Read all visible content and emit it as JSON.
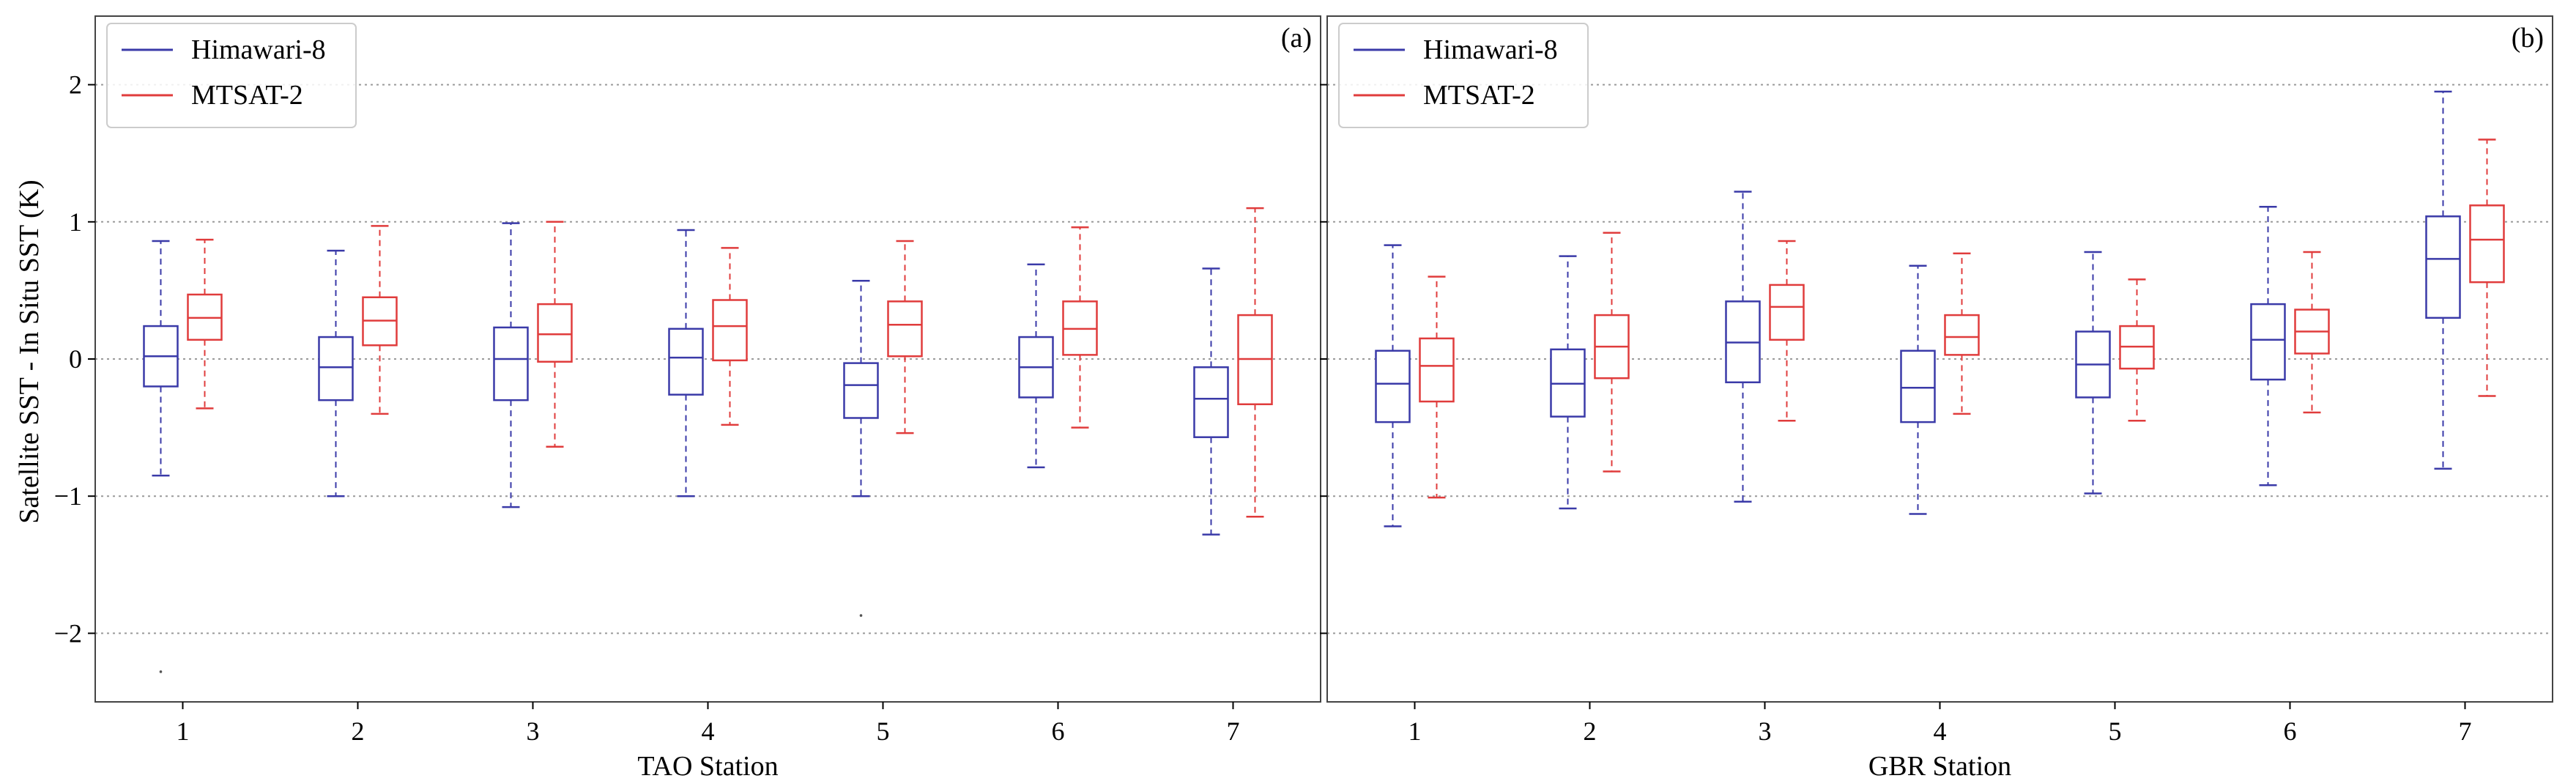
{
  "chart_data": [
    {
      "type": "boxplot",
      "panel_label": "(a)",
      "xlabel": "TAO Station",
      "ylabel": "Satellite SST - In Situ SST (K)",
      "ylim": [
        -2.5,
        2.5
      ],
      "yticks": [
        -2,
        -1,
        0,
        1,
        2
      ],
      "ytick_labels": [
        "−2",
        "−1",
        "0",
        "1",
        "2"
      ],
      "grid": "horizontal dotted",
      "legend_position": "top-left",
      "categories": [
        "1",
        "2",
        "3",
        "4",
        "5",
        "6",
        "7"
      ],
      "series": [
        {
          "name": "Himawari-8",
          "color": "#3a3aa8",
          "boxes": [
            {
              "whislo": -0.85,
              "q1": -0.2,
              "med": 0.02,
              "q3": 0.24,
              "whishi": 0.86
            },
            {
              "whislo": -1.0,
              "q1": -0.3,
              "med": -0.06,
              "q3": 0.16,
              "whishi": 0.79
            },
            {
              "whislo": -1.08,
              "q1": -0.3,
              "med": 0.0,
              "q3": 0.23,
              "whishi": 0.99
            },
            {
              "whislo": -1.0,
              "q1": -0.26,
              "med": 0.01,
              "q3": 0.22,
              "whishi": 0.94
            },
            {
              "whislo": -1.0,
              "q1": -0.43,
              "med": -0.19,
              "q3": -0.03,
              "whishi": 0.57
            },
            {
              "whislo": -0.79,
              "q1": -0.28,
              "med": -0.06,
              "q3": 0.16,
              "whishi": 0.69
            },
            {
              "whislo": -1.28,
              "q1": -0.57,
              "med": -0.29,
              "q3": -0.06,
              "whishi": 0.66
            }
          ],
          "outliers": [
            [
              1,
              -2.28
            ],
            [
              5,
              -1.87
            ]
          ]
        },
        {
          "name": "MTSAT-2",
          "color": "#e03c3c",
          "boxes": [
            {
              "whislo": -0.36,
              "q1": 0.14,
              "med": 0.3,
              "q3": 0.47,
              "whishi": 0.87
            },
            {
              "whislo": -0.4,
              "q1": 0.1,
              "med": 0.28,
              "q3": 0.45,
              "whishi": 0.97
            },
            {
              "whislo": -0.64,
              "q1": -0.02,
              "med": 0.18,
              "q3": 0.4,
              "whishi": 1.0
            },
            {
              "whislo": -0.48,
              "q1": -0.01,
              "med": 0.24,
              "q3": 0.43,
              "whishi": 0.81
            },
            {
              "whislo": -0.54,
              "q1": 0.02,
              "med": 0.25,
              "q3": 0.42,
              "whishi": 0.86
            },
            {
              "whislo": -0.5,
              "q1": 0.03,
              "med": 0.22,
              "q3": 0.42,
              "whishi": 0.96
            },
            {
              "whislo": -1.15,
              "q1": -0.33,
              "med": 0.0,
              "q3": 0.32,
              "whishi": 1.1
            }
          ],
          "outliers": []
        }
      ]
    },
    {
      "type": "boxplot",
      "panel_label": "(b)",
      "xlabel": "GBR Station",
      "ylabel": "",
      "ylim": [
        -2.5,
        2.5
      ],
      "yticks": [
        -2,
        -1,
        0,
        1,
        2
      ],
      "grid": "horizontal dotted",
      "legend_position": "top-left",
      "categories": [
        "1",
        "2",
        "3",
        "4",
        "5",
        "6",
        "7"
      ],
      "series": [
        {
          "name": "Himawari-8",
          "color": "#3a3aa8",
          "boxes": [
            {
              "whislo": -1.22,
              "q1": -0.46,
              "med": -0.18,
              "q3": 0.06,
              "whishi": 0.83
            },
            {
              "whislo": -1.09,
              "q1": -0.42,
              "med": -0.18,
              "q3": 0.07,
              "whishi": 0.75
            },
            {
              "whislo": -1.04,
              "q1": -0.17,
              "med": 0.12,
              "q3": 0.42,
              "whishi": 1.22
            },
            {
              "whislo": -1.13,
              "q1": -0.46,
              "med": -0.21,
              "q3": 0.06,
              "whishi": 0.68
            },
            {
              "whislo": -0.98,
              "q1": -0.28,
              "med": -0.04,
              "q3": 0.2,
              "whishi": 0.78
            },
            {
              "whislo": -0.92,
              "q1": -0.15,
              "med": 0.14,
              "q3": 0.4,
              "whishi": 1.11
            },
            {
              "whislo": -0.8,
              "q1": 0.3,
              "med": 0.73,
              "q3": 1.04,
              "whishi": 1.95
            }
          ],
          "outliers": []
        },
        {
          "name": "MTSAT-2",
          "color": "#e03c3c",
          "boxes": [
            {
              "whislo": -1.01,
              "q1": -0.31,
              "med": -0.05,
              "q3": 0.15,
              "whishi": 0.6
            },
            {
              "whislo": -0.82,
              "q1": -0.14,
              "med": 0.09,
              "q3": 0.32,
              "whishi": 0.92
            },
            {
              "whislo": -0.45,
              "q1": 0.14,
              "med": 0.38,
              "q3": 0.54,
              "whishi": 0.86
            },
            {
              "whislo": -0.4,
              "q1": 0.03,
              "med": 0.16,
              "q3": 0.32,
              "whishi": 0.77
            },
            {
              "whislo": -0.45,
              "q1": -0.07,
              "med": 0.09,
              "q3": 0.24,
              "whishi": 0.58
            },
            {
              "whislo": -0.39,
              "q1": 0.04,
              "med": 0.2,
              "q3": 0.36,
              "whishi": 0.78
            },
            {
              "whislo": -0.27,
              "q1": 0.56,
              "med": 0.87,
              "q3": 1.12,
              "whishi": 1.6
            }
          ],
          "outliers": []
        }
      ]
    }
  ]
}
